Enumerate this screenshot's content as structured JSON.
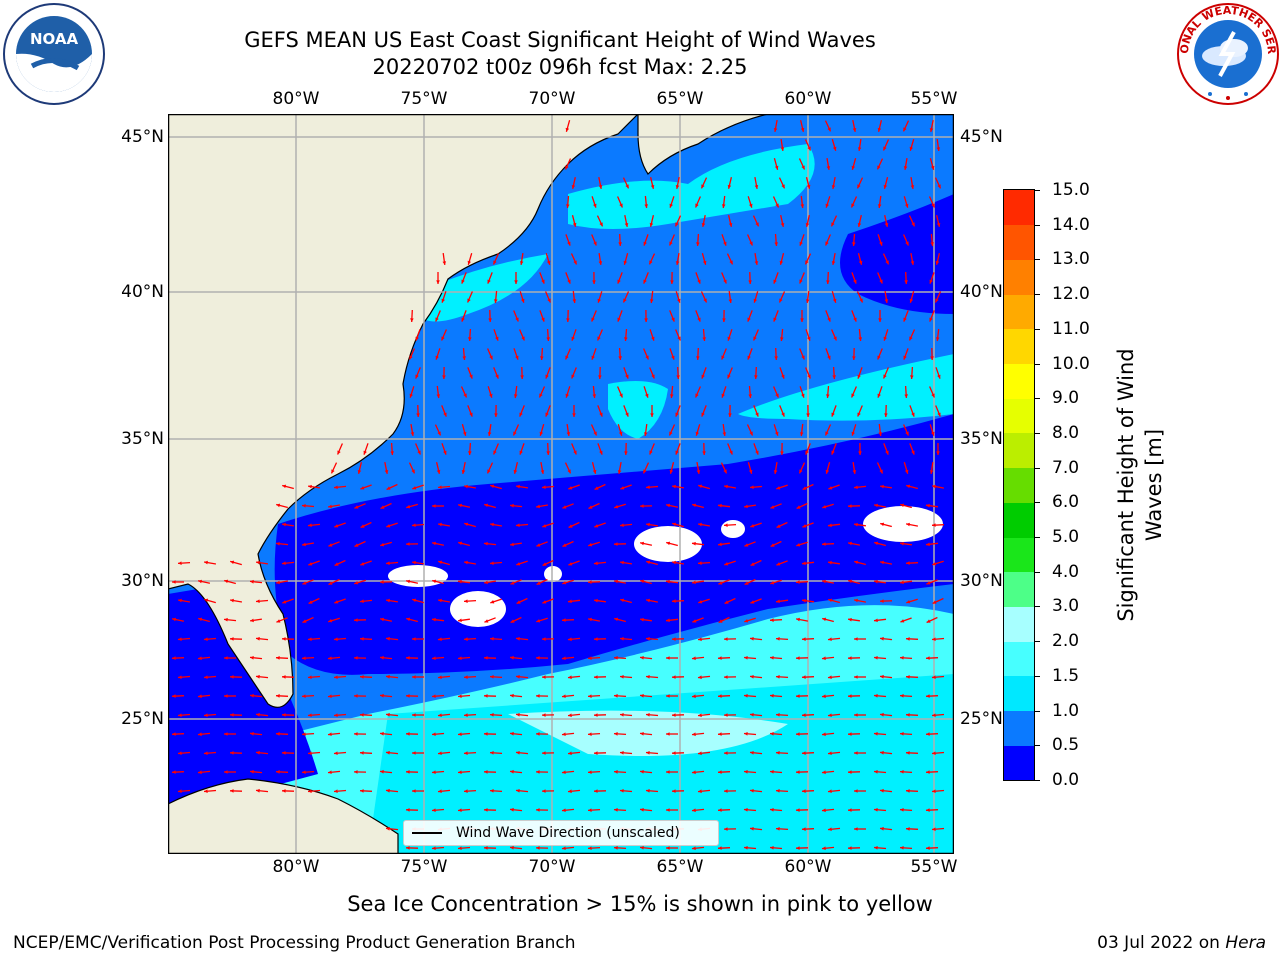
{
  "header": {
    "title_line1": "GEFS MEAN US East Coast Significant Height of Wind Waves",
    "title_line2": "20220702 t00z 096h fcst   Max: 2.25"
  },
  "logos": {
    "left": "NOAA",
    "right": "NATIONAL WEATHER SERVICE"
  },
  "map": {
    "lon_labels": [
      "80°W",
      "75°W",
      "70°W",
      "65°W",
      "60°W",
      "55°W"
    ],
    "lat_labels": [
      "45°N",
      "40°N",
      "35°N",
      "30°N",
      "25°N"
    ],
    "extent": {
      "lon": [
        -85,
        -54.2
      ],
      "lat": [
        20.5,
        45.8
      ]
    },
    "land_color": "#efeedc",
    "grid_color": "#b0b0b0",
    "legend_label": "Wind Wave Direction (unscaled)",
    "arrow_color": "#ff0000"
  },
  "colorbar": {
    "title_line1": "Significant Height of Wind",
    "title_line2": "Waves [m]",
    "levels": [
      "0.0",
      "0.5",
      "1.0",
      "1.5",
      "2.0",
      "3.0",
      "4.0",
      "5.0",
      "6.0",
      "7.0",
      "8.0",
      "9.0",
      "10.0",
      "11.0",
      "12.0",
      "13.0",
      "14.0",
      "15.0"
    ],
    "colors": [
      "#0000ff",
      "#0b7aff",
      "#00e8ff",
      "#47ffff",
      "#a7ffff",
      "#4dff88",
      "#1ae61a",
      "#00cc00",
      "#66dd00",
      "#bbee00",
      "#e6ff00",
      "#ffff00",
      "#ffd700",
      "#ffaa00",
      "#ff8000",
      "#ff5500",
      "#ff2a00"
    ]
  },
  "footer": {
    "sea_ice_note": "Sea Ice Concentration > 15% is shown in pink to yellow",
    "credit": "NCEP/EMC/Verification Post Processing Product Generation Branch",
    "date_text": "03 Jul 2022 on ",
    "machine": "Hera"
  }
}
